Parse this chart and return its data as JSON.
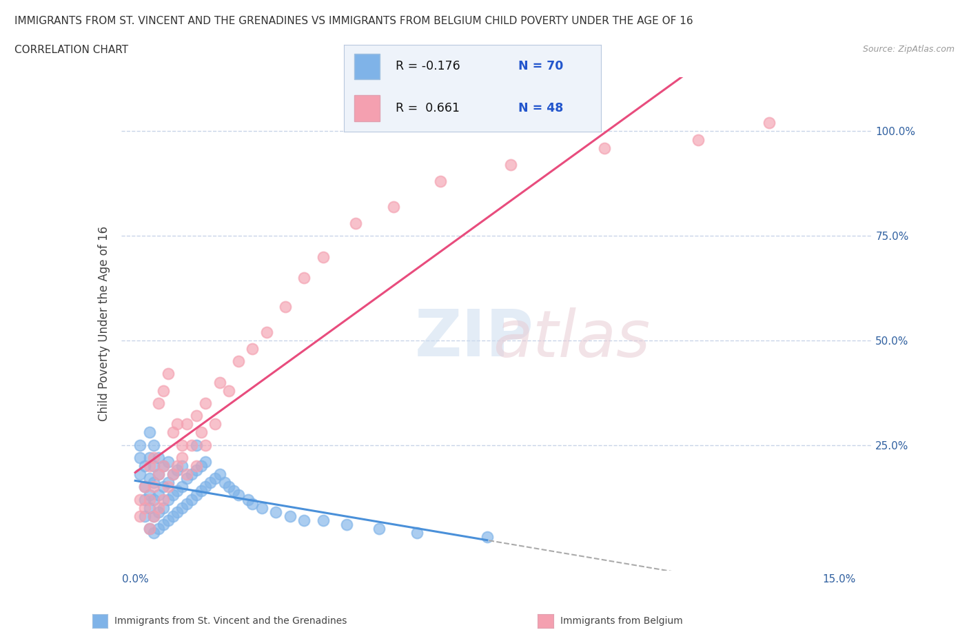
{
  "title_line1": "IMMIGRANTS FROM ST. VINCENT AND THE GRENADINES VS IMMIGRANTS FROM BELGIUM CHILD POVERTY UNDER THE AGE OF 16",
  "title_line2": "CORRELATION CHART",
  "source": "Source: ZipAtlas.com",
  "ylabel": "Child Poverty Under the Age of 16",
  "series1_name": "Immigrants from St. Vincent and the Grenadines",
  "series1_color": "#7fb3e8",
  "series1_R": -0.176,
  "series1_N": 70,
  "series2_name": "Immigrants from Belgium",
  "series2_color": "#f4a0b0",
  "series2_R": 0.661,
  "series2_N": 48,
  "series1_x": [
    0.001,
    0.001,
    0.001,
    0.002,
    0.002,
    0.002,
    0.002,
    0.003,
    0.003,
    0.003,
    0.003,
    0.003,
    0.003,
    0.004,
    0.004,
    0.004,
    0.004,
    0.004,
    0.004,
    0.005,
    0.005,
    0.005,
    0.005,
    0.005,
    0.006,
    0.006,
    0.006,
    0.006,
    0.007,
    0.007,
    0.007,
    0.007,
    0.008,
    0.008,
    0.008,
    0.009,
    0.009,
    0.009,
    0.01,
    0.01,
    0.01,
    0.011,
    0.011,
    0.012,
    0.012,
    0.013,
    0.013,
    0.013,
    0.014,
    0.014,
    0.015,
    0.015,
    0.016,
    0.017,
    0.018,
    0.019,
    0.02,
    0.021,
    0.022,
    0.024,
    0.025,
    0.027,
    0.03,
    0.033,
    0.036,
    0.04,
    0.045,
    0.052,
    0.06,
    0.075
  ],
  "series1_y": [
    0.18,
    0.22,
    0.25,
    0.08,
    0.12,
    0.15,
    0.2,
    0.05,
    0.1,
    0.13,
    0.17,
    0.22,
    0.28,
    0.04,
    0.08,
    0.12,
    0.16,
    0.2,
    0.25,
    0.05,
    0.09,
    0.13,
    0.18,
    0.22,
    0.06,
    0.1,
    0.15,
    0.2,
    0.07,
    0.12,
    0.16,
    0.21,
    0.08,
    0.13,
    0.18,
    0.09,
    0.14,
    0.19,
    0.1,
    0.15,
    0.2,
    0.11,
    0.17,
    0.12,
    0.18,
    0.13,
    0.19,
    0.25,
    0.14,
    0.2,
    0.15,
    0.21,
    0.16,
    0.17,
    0.18,
    0.16,
    0.15,
    0.14,
    0.13,
    0.12,
    0.11,
    0.1,
    0.09,
    0.08,
    0.07,
    0.07,
    0.06,
    0.05,
    0.04,
    0.03
  ],
  "series2_x": [
    0.001,
    0.001,
    0.002,
    0.002,
    0.003,
    0.003,
    0.003,
    0.004,
    0.004,
    0.004,
    0.005,
    0.005,
    0.005,
    0.006,
    0.006,
    0.006,
    0.007,
    0.007,
    0.008,
    0.008,
    0.009,
    0.009,
    0.01,
    0.01,
    0.011,
    0.011,
    0.012,
    0.013,
    0.013,
    0.014,
    0.015,
    0.015,
    0.017,
    0.018,
    0.02,
    0.022,
    0.025,
    0.028,
    0.032,
    0.036,
    0.04,
    0.047,
    0.055,
    0.065,
    0.08,
    0.1,
    0.12,
    0.135
  ],
  "series2_y": [
    0.08,
    0.12,
    0.1,
    0.15,
    0.05,
    0.12,
    0.2,
    0.08,
    0.15,
    0.22,
    0.1,
    0.18,
    0.35,
    0.12,
    0.2,
    0.38,
    0.15,
    0.42,
    0.18,
    0.28,
    0.2,
    0.3,
    0.22,
    0.25,
    0.18,
    0.3,
    0.25,
    0.2,
    0.32,
    0.28,
    0.25,
    0.35,
    0.3,
    0.4,
    0.38,
    0.45,
    0.48,
    0.52,
    0.58,
    0.65,
    0.7,
    0.78,
    0.82,
    0.88,
    0.92,
    0.96,
    0.98,
    1.02
  ],
  "trend1_color": "#4a90d9",
  "trend2_color": "#e84c7d",
  "background_color": "#ffffff",
  "grid_color": "#c8d4e8",
  "x_tick_vals": [
    0.0,
    0.03,
    0.06,
    0.09,
    0.12,
    0.15
  ],
  "y_tick_vals": [
    0.0,
    0.25,
    0.5,
    0.75,
    1.0
  ],
  "y_tick_labels": [
    "",
    "25.0%",
    "50.0%",
    "75.0%",
    "100.0%"
  ]
}
